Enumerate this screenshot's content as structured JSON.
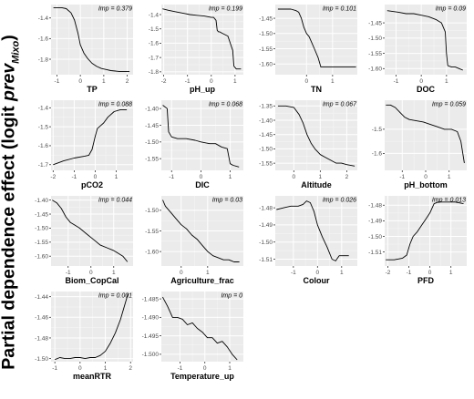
{
  "y_axis_title": {
    "prefix": "Partial dependence effect (logit ",
    "italic": "prev",
    "subscript": "Mixo",
    "suffix": ")"
  },
  "chart_data": [
    {
      "type": "line",
      "xlabel": "TP",
      "annotation": "Imp = 0.379",
      "xticks": [
        -1,
        0,
        1,
        2
      ],
      "yticks": [
        -1.4,
        -1.6,
        -1.8
      ],
      "ytick_labels": [
        "-1.4",
        "-1.6",
        "-1.8"
      ],
      "xlim": [
        -1.25,
        2.25
      ],
      "ylim": [
        -1.95,
        -1.27
      ],
      "x": [
        -1.15,
        -0.8,
        -0.6,
        -0.4,
        -0.25,
        -0.1,
        0.0,
        0.15,
        0.3,
        0.5,
        0.7,
        0.9,
        1.1,
        1.3,
        1.5,
        1.7,
        1.9,
        2.1
      ],
      "y": [
        -1.3,
        -1.3,
        -1.31,
        -1.35,
        -1.42,
        -1.55,
        -1.66,
        -1.74,
        -1.79,
        -1.84,
        -1.87,
        -1.89,
        -1.9,
        -1.91,
        -1.915,
        -1.92,
        -1.92,
        -1.92
      ]
    },
    {
      "type": "line",
      "xlabel": "pH_up",
      "annotation": "Imp = 0.199",
      "xticks": [
        -2,
        -1,
        0,
        1
      ],
      "yticks": [
        -1.4,
        -1.5,
        -1.6,
        -1.7,
        -1.8
      ],
      "ytick_labels": [
        "-1.4",
        "-1.5",
        "-1.6",
        "-1.7",
        "-1.8"
      ],
      "xlim": [
        -2.1,
        1.35
      ],
      "ylim": [
        -1.82,
        -1.33
      ],
      "x": [
        -2.05,
        -1.8,
        -1.5,
        -1.2,
        -0.9,
        -0.6,
        -0.3,
        0.0,
        0.1,
        0.2,
        0.25,
        0.3,
        0.35,
        0.45,
        0.7,
        0.9,
        0.95,
        1.05,
        1.25
      ],
      "y": [
        -1.36,
        -1.37,
        -1.38,
        -1.39,
        -1.4,
        -1.405,
        -1.41,
        -1.42,
        -1.42,
        -1.44,
        -1.51,
        -1.52,
        -1.52,
        -1.53,
        -1.55,
        -1.65,
        -1.76,
        -1.78,
        -1.78
      ]
    },
    {
      "type": "line",
      "xlabel": "TN",
      "annotation": "Imp = 0.101",
      "xticks": [
        0,
        1
      ],
      "yticks": [
        -1.45,
        -1.5,
        -1.55,
        -1.6
      ],
      "ytick_labels": [
        "-1.45",
        "-1.50",
        "-1.55",
        "-1.60"
      ],
      "xlim": [
        -1.2,
        1.95
      ],
      "ylim": [
        -1.635,
        -1.405
      ],
      "x": [
        -1.1,
        -0.6,
        -0.4,
        -0.3,
        -0.2,
        -0.1,
        0.0,
        0.1,
        0.2,
        0.3,
        0.45,
        0.55,
        1.0,
        1.5,
        1.9
      ],
      "y": [
        -1.42,
        -1.42,
        -1.425,
        -1.43,
        -1.45,
        -1.48,
        -1.5,
        -1.51,
        -1.53,
        -1.55,
        -1.58,
        -1.61,
        -1.61,
        -1.61,
        -1.61
      ],
      "xtick_labels": [
        "0",
        "1"
      ]
    },
    {
      "type": "line",
      "xlabel": "DOC",
      "annotation": "Imp = 0.09",
      "xticks": [
        -1,
        0,
        1
      ],
      "yticks": [
        -1.45,
        -1.5,
        -1.55,
        -1.6
      ],
      "ytick_labels": [
        "-1.45",
        "-1.50",
        "-1.55",
        "-1.60"
      ],
      "xlim": [
        -1.45,
        1.8
      ],
      "ylim": [
        -1.62,
        -1.39
      ],
      "x": [
        -1.35,
        -0.9,
        -0.6,
        -0.3,
        0.0,
        0.3,
        0.6,
        0.8,
        0.95,
        1.0,
        1.05,
        1.2,
        1.35,
        1.5,
        1.65
      ],
      "y": [
        -1.41,
        -1.415,
        -1.42,
        -1.42,
        -1.425,
        -1.43,
        -1.44,
        -1.45,
        -1.48,
        -1.55,
        -1.59,
        -1.595,
        -1.595,
        -1.6,
        -1.605
      ]
    },
    {
      "type": "line",
      "xlabel": "pCO2",
      "annotation": "Imp = 0.088",
      "xticks": [
        -2,
        -1,
        0,
        1
      ],
      "yticks": [
        -1.4,
        -1.5,
        -1.6,
        -1.7
      ],
      "ytick_labels": [
        "-1.4",
        "-1.5",
        "-1.6",
        "-1.7"
      ],
      "xlim": [
        -2.1,
        1.8
      ],
      "ylim": [
        -1.73,
        -1.36
      ],
      "x": [
        -2.0,
        -1.5,
        -1.0,
        -0.5,
        -0.3,
        -0.15,
        0.0,
        0.1,
        0.2,
        0.4,
        0.6,
        0.9,
        1.2,
        1.5
      ],
      "y": [
        -1.7,
        -1.68,
        -1.665,
        -1.655,
        -1.65,
        -1.62,
        -1.55,
        -1.51,
        -1.5,
        -1.48,
        -1.45,
        -1.42,
        -1.41,
        -1.41
      ]
    },
    {
      "type": "line",
      "xlabel": "DIC",
      "annotation": "Imp = 0.068",
      "xticks": [
        -1,
        0,
        1
      ],
      "yticks": [
        -1.4,
        -1.45,
        -1.5,
        -1.55
      ],
      "ytick_labels": [
        "-1.40",
        "-1.45",
        "-1.50",
        "-1.55"
      ],
      "xlim": [
        -1.35,
        1.45
      ],
      "ylim": [
        -1.585,
        -1.375
      ],
      "x": [
        -1.3,
        -1.15,
        -1.1,
        -1.0,
        -0.8,
        -0.5,
        -0.2,
        0.0,
        0.3,
        0.5,
        0.7,
        0.9,
        1.0,
        1.1,
        1.3
      ],
      "y": [
        -1.39,
        -1.4,
        -1.47,
        -1.485,
        -1.49,
        -1.49,
        -1.495,
        -1.5,
        -1.505,
        -1.505,
        -1.515,
        -1.52,
        -1.565,
        -1.57,
        -1.575
      ]
    },
    {
      "type": "line",
      "xlabel": "Altitude",
      "annotation": "Imp = 0.067",
      "xticks": [
        0,
        1,
        2
      ],
      "yticks": [
        -1.35,
        -1.4,
        -1.45,
        -1.5,
        -1.55
      ],
      "ytick_labels": [
        "-1.35",
        "-1.40",
        "-1.45",
        "-1.50",
        "-1.55"
      ],
      "xlim": [
        -0.7,
        2.4
      ],
      "ylim": [
        -1.575,
        -1.33
      ],
      "x": [
        -0.6,
        -0.3,
        0.0,
        0.2,
        0.35,
        0.5,
        0.65,
        0.8,
        1.0,
        1.2,
        1.4,
        1.6,
        1.8,
        2.0,
        2.3
      ],
      "y": [
        -1.35,
        -1.35,
        -1.355,
        -1.38,
        -1.41,
        -1.45,
        -1.48,
        -1.5,
        -1.52,
        -1.53,
        -1.54,
        -1.55,
        -1.55,
        -1.555,
        -1.56
      ]
    },
    {
      "type": "line",
      "xlabel": "pH_bottom",
      "annotation": "Imp = 0.059",
      "xticks": [
        -1,
        0,
        1
      ],
      "yticks": [
        -1.5,
        -1.6
      ],
      "ytick_labels": [
        "-1.5",
        "-1.6"
      ],
      "xlim": [
        -1.75,
        1.75
      ],
      "ylim": [
        -1.67,
        -1.38
      ],
      "x": [
        -1.7,
        -1.5,
        -1.3,
        -1.1,
        -0.9,
        -0.7,
        -0.4,
        -0.1,
        0.2,
        0.5,
        0.8,
        1.1,
        1.35,
        1.5,
        1.65
      ],
      "y": [
        -1.4,
        -1.4,
        -1.41,
        -1.43,
        -1.45,
        -1.46,
        -1.465,
        -1.47,
        -1.48,
        -1.49,
        -1.5,
        -1.5,
        -1.51,
        -1.55,
        -1.64
      ]
    },
    {
      "type": "line",
      "xlabel": "Biom_CopCal",
      "annotation": "Imp = 0.044",
      "xticks": [
        -1,
        0,
        1
      ],
      "yticks": [
        -1.4,
        -1.45,
        -1.5,
        -1.55,
        -1.6
      ],
      "ytick_labels": [
        "-1.40",
        "-1.45",
        "-1.50",
        "-1.55",
        "-1.60"
      ],
      "xlim": [
        -1.75,
        1.85
      ],
      "ylim": [
        -1.635,
        -1.385
      ],
      "x": [
        -1.7,
        -1.5,
        -1.3,
        -1.1,
        -0.9,
        -0.7,
        -0.5,
        -0.2,
        0.1,
        0.4,
        0.7,
        1.0,
        1.2,
        1.4,
        1.6
      ],
      "y": [
        -1.4,
        -1.41,
        -1.43,
        -1.46,
        -1.48,
        -1.49,
        -1.5,
        -1.52,
        -1.54,
        -1.56,
        -1.57,
        -1.58,
        -1.59,
        -1.6,
        -1.62
      ]
    },
    {
      "type": "line",
      "xlabel": "Agriculture_frac",
      "annotation": "Imp = 0.03",
      "xticks": [
        0,
        1
      ],
      "yticks": [
        -1.5,
        -1.55,
        -1.6
      ],
      "ytick_labels": [
        "-1.50",
        "-1.55",
        "-1.60"
      ],
      "xlim": [
        -0.75,
        2.35
      ],
      "ylim": [
        -1.635,
        -1.465
      ],
      "x": [
        -0.7,
        -0.6,
        -0.4,
        -0.2,
        0.0,
        0.2,
        0.4,
        0.6,
        0.8,
        1.0,
        1.2,
        1.4,
        1.6,
        1.8,
        2.0,
        2.2
      ],
      "y": [
        -1.475,
        -1.49,
        -1.505,
        -1.52,
        -1.535,
        -1.545,
        -1.56,
        -1.57,
        -1.585,
        -1.6,
        -1.61,
        -1.615,
        -1.62,
        -1.62,
        -1.625,
        -1.625
      ]
    },
    {
      "type": "line",
      "xlabel": "Colour",
      "annotation": "Imp = 0.026",
      "xticks": [
        -1,
        0,
        1
      ],
      "yticks": [
        -1.48,
        -1.49,
        -1.5,
        -1.51
      ],
      "ytick_labels": [
        "-1.48",
        "-1.49",
        "-1.50",
        "-1.51"
      ],
      "xlim": [
        -1.75,
        1.65
      ],
      "ylim": [
        -1.514,
        -1.473
      ],
      "x": [
        -1.7,
        -1.4,
        -1.1,
        -0.8,
        -0.6,
        -0.45,
        -0.3,
        -0.15,
        0.0,
        0.2,
        0.4,
        0.6,
        0.75,
        0.9,
        1.1,
        1.3
      ],
      "y": [
        -1.481,
        -1.48,
        -1.479,
        -1.479,
        -1.478,
        -1.476,
        -1.477,
        -1.482,
        -1.49,
        -1.497,
        -1.503,
        -1.51,
        -1.511,
        -1.508,
        -1.508,
        -1.508
      ]
    },
    {
      "type": "line",
      "xlabel": "PFD",
      "annotation": "Imp = 0.013",
      "xticks": [
        -2,
        -1,
        0,
        1
      ],
      "yticks": [
        -1.48,
        -1.49,
        -1.5,
        -1.51
      ],
      "ytick_labels": [
        "-1.48",
        "-1.49",
        "-1.50",
        "-1.51"
      ],
      "xlim": [
        -2.15,
        1.75
      ],
      "ylim": [
        -1.519,
        -1.474
      ],
      "x": [
        -2.1,
        -1.7,
        -1.3,
        -1.1,
        -0.95,
        -0.8,
        -0.6,
        -0.4,
        -0.2,
        0.0,
        0.2,
        0.4,
        0.8,
        1.2,
        1.6
      ],
      "y": [
        -1.515,
        -1.515,
        -1.514,
        -1.512,
        -1.505,
        -1.5,
        -1.497,
        -1.493,
        -1.489,
        -1.485,
        -1.479,
        -1.478,
        -1.478,
        -1.478,
        -1.479
      ]
    },
    {
      "type": "line",
      "xlabel": "meanRTR",
      "annotation": "Imp = 0.001",
      "xticks": [
        -1,
        0,
        1,
        2
      ],
      "yticks": [
        -1.44,
        -1.46,
        -1.48,
        -1.5
      ],
      "ytick_labels": [
        "-1.44",
        "-1.46",
        "-1.48",
        "-1.50"
      ],
      "xlim": [
        -1.15,
        2.1
      ],
      "ylim": [
        -1.503,
        -1.435
      ],
      "x": [
        -1.0,
        -0.8,
        -0.6,
        -0.4,
        -0.2,
        0.0,
        0.2,
        0.4,
        0.6,
        0.8,
        1.0,
        1.2,
        1.4,
        1.6,
        1.9
      ],
      "y": [
        -1.501,
        -1.499,
        -1.5,
        -1.5,
        -1.499,
        -1.499,
        -1.5,
        -1.499,
        -1.499,
        -1.497,
        -1.493,
        -1.485,
        -1.475,
        -1.462,
        -1.437
      ]
    },
    {
      "type": "line",
      "xlabel": "Temperature_up",
      "annotation": "Imp = 0",
      "xticks": [
        -1,
        0,
        1
      ],
      "yticks": [
        -1.485,
        -1.49,
        -1.495,
        -1.5
      ],
      "ytick_labels": [
        "-1.485",
        "-1.490",
        "-1.495",
        "-1.500"
      ],
      "xlim": [
        -1.75,
        1.55
      ],
      "ylim": [
        -1.502,
        -1.483
      ],
      "x": [
        -1.7,
        -1.5,
        -1.3,
        -1.1,
        -0.9,
        -0.7,
        -0.5,
        -0.3,
        -0.1,
        0.1,
        0.3,
        0.5,
        0.7,
        0.9,
        1.1,
        1.3
      ],
      "y": [
        -1.4845,
        -1.487,
        -1.49,
        -1.49,
        -1.4905,
        -1.492,
        -1.4915,
        -1.493,
        -1.494,
        -1.4955,
        -1.4955,
        -1.497,
        -1.4965,
        -1.498,
        -1.5,
        -1.5015
      ]
    }
  ]
}
